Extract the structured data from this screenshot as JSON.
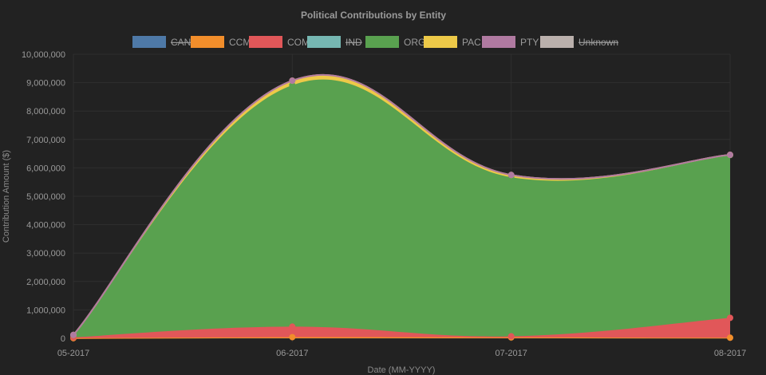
{
  "chart_data": {
    "type": "area",
    "title": "Political Contributions by Entity",
    "xlabel": "Date (MM-YYYY)",
    "ylabel": "Contribution Amount ($)",
    "categories": [
      "05-2017",
      "06-2017",
      "07-2017",
      "08-2017"
    ],
    "ylim": [
      0,
      10000000
    ],
    "y_ticks": [
      "0",
      "1,000,000",
      "2,000,000",
      "3,000,000",
      "4,000,000",
      "5,000,000",
      "6,000,000",
      "7,000,000",
      "8,000,000",
      "9,000,000",
      "10,000,000"
    ],
    "stacked": true,
    "grid": true,
    "legend_position": "top",
    "series": [
      {
        "name": "CAN",
        "color": "#4e79a7",
        "hidden": true,
        "values": [
          0,
          0,
          0,
          0
        ]
      },
      {
        "name": "CCM",
        "color": "#f28e2b",
        "hidden": false,
        "values": [
          5000,
          40000,
          30000,
          20000
        ]
      },
      {
        "name": "COM",
        "color": "#e15759",
        "hidden": false,
        "values": [
          30000,
          370000,
          40000,
          700000
        ]
      },
      {
        "name": "IND",
        "color": "#76b7b2",
        "hidden": true,
        "values": [
          0,
          0,
          0,
          0
        ]
      },
      {
        "name": "ORG",
        "color": "#59a14f",
        "hidden": false,
        "values": [
          80000,
          8500000,
          5600000,
          5730000
        ]
      },
      {
        "name": "PAC",
        "color": "#edc948",
        "hidden": false,
        "values": [
          5000,
          160000,
          80000,
          10000
        ]
      },
      {
        "name": "PTY",
        "color": "#b07aa1",
        "hidden": false,
        "values": [
          0,
          0,
          0,
          0
        ]
      },
      {
        "name": "Unknown",
        "color": "#bab0ac",
        "hidden": true,
        "values": [
          0,
          0,
          0,
          0
        ]
      }
    ]
  }
}
